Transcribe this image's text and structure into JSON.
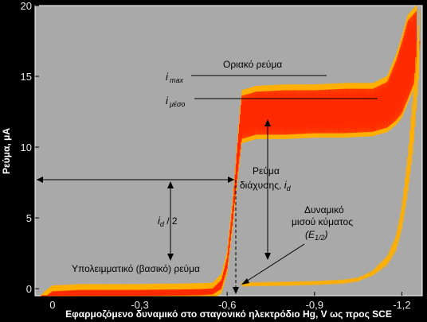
{
  "chart_data": {
    "type": "line",
    "title": "",
    "xlabel": "Εφαρμοζόμενο δυναμικό στο σταγονικό ηλεκτρόδιο Hg, V ως προς SCE",
    "ylabel": "Ρεύμα, μA",
    "xlim": [
      0.06,
      -1.27
    ],
    "ylim": [
      -0.5,
      20
    ],
    "x_ticks": [
      0,
      -0.3,
      -0.6,
      -0.9,
      -1.2
    ],
    "x_tick_labels": [
      "0",
      "-0,3",
      "-0,6",
      "-0,9",
      "-1,2"
    ],
    "y_ticks": [
      0,
      5,
      10,
      15,
      20
    ],
    "y_tick_labels": [
      "0",
      "5",
      "10",
      "15",
      "20"
    ],
    "grid": false,
    "colors": {
      "background": "#000000",
      "plot": "#a9a9a9",
      "line": "#ff2a00",
      "fill": "#ffb000",
      "annotation": "#000000"
    },
    "series": [
      {
        "name": "",
        "average": {
          "x": [
            0.04,
            0.02,
            0.0,
            -0.1,
            -0.3,
            -0.5,
            -0.55,
            -0.58,
            -0.6,
            -0.62,
            -0.635,
            -0.65,
            -0.7,
            -0.8,
            -0.9,
            -1.0,
            -1.1,
            -1.15,
            -1.18,
            -1.2,
            -1.22,
            -1.25
          ],
          "y": [
            -0.5,
            -0.2,
            0.0,
            0.1,
            0.1,
            0.15,
            0.2,
            0.6,
            2.0,
            5.5,
            8.5,
            11.2,
            11.5,
            11.5,
            11.6,
            11.6,
            11.7,
            12.0,
            12.5,
            13.0,
            14.0,
            15.5
          ]
        },
        "max": {
          "x": [
            0.04,
            0.02,
            0.0,
            -0.1,
            -0.3,
            -0.5,
            -0.55,
            -0.58,
            -0.6,
            -0.62,
            -0.635,
            -0.65,
            -0.7,
            -0.8,
            -0.9,
            -1.0,
            -1.1,
            -1.15,
            -1.18,
            -1.2,
            -1.22,
            -1.25
          ],
          "y": [
            -0.5,
            -0.1,
            0.2,
            0.3,
            0.3,
            0.35,
            0.4,
            1.0,
            2.6,
            6.5,
            10.5,
            14.0,
            14.3,
            14.4,
            14.4,
            14.5,
            14.5,
            15.0,
            16.5,
            17.8,
            19.3,
            20.0
          ]
        },
        "residual": {
          "x": [
            -0.65,
            -0.8,
            -0.9,
            -1.0,
            -1.05,
            -1.1,
            -1.15,
            -1.18,
            -1.2,
            -1.22,
            -1.24,
            -1.26
          ],
          "y": [
            0.3,
            0.35,
            0.4,
            0.5,
            0.65,
            1.1,
            2.0,
            3.2,
            5.0,
            8.0,
            12.0,
            17.5
          ]
        }
      }
    ],
    "annotations": {
      "limiting_current": "Οριακό ρεύμα",
      "i_max": "i",
      "i_max_sub": "max",
      "i_mean": "i",
      "i_mean_sub": "μέσο",
      "diffusion_line1": "Ρεύμα",
      "diffusion_line2": "διάχυσης, ",
      "diffusion_i": "i",
      "diffusion_sub": "d",
      "half_i": "i",
      "half_sub": "d",
      "half_rest": " / 2",
      "halfwave_line1": "Δυναμικό",
      "halfwave_line2": "μισού κύματος",
      "halfwave_line3": "(E",
      "halfwave_sub": "1/2",
      "halfwave_close": ")",
      "residual": "Υπολειμματικό (βασικό) ρεύμα"
    }
  }
}
